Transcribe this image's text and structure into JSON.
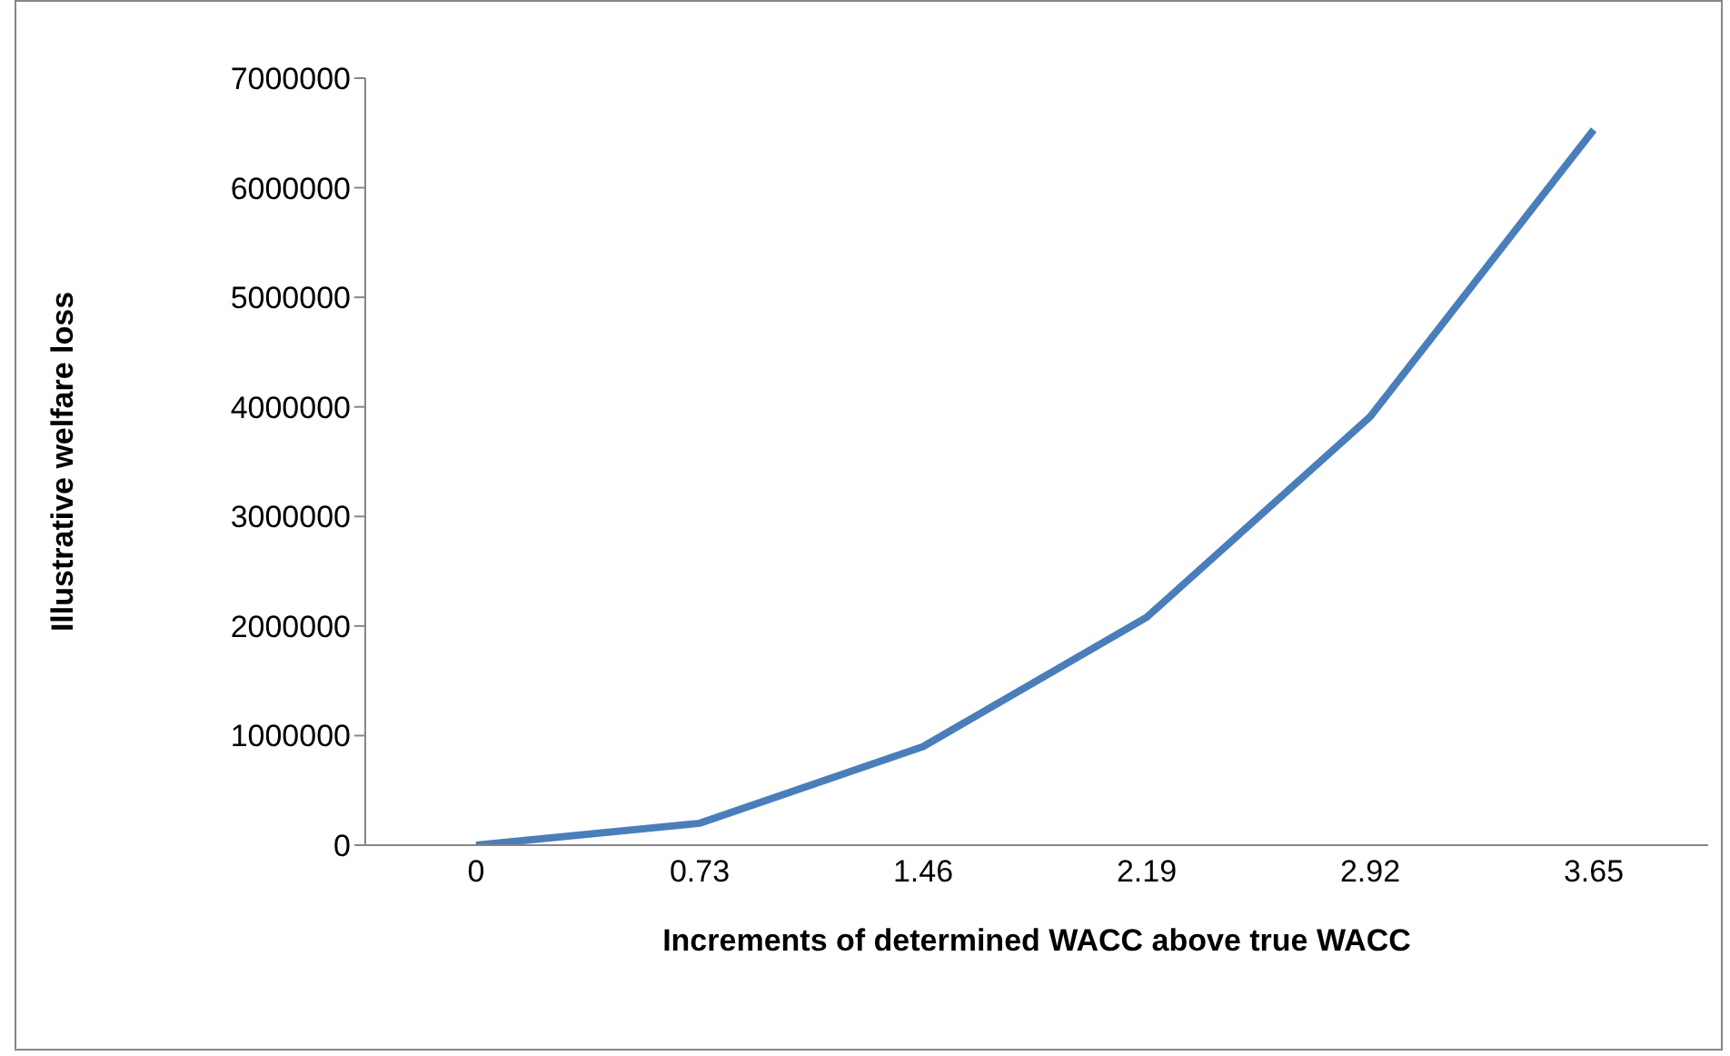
{
  "chart_data": {
    "type": "line",
    "xlabel": "Increments of determined WACC above true WACC",
    "ylabel": "Illustrative welfare loss",
    "categories": [
      "0",
      "0.73",
      "1.46",
      "2.19",
      "2.92",
      "3.65"
    ],
    "series": [
      {
        "color": "#4a7ebb",
        "values": [
          0,
          200000,
          900000,
          2080000,
          3910000,
          6530000
        ]
      }
    ],
    "ylim": [
      0,
      7000000
    ],
    "yticks": [
      0,
      1000000,
      2000000,
      3000000,
      4000000,
      5000000,
      6000000,
      7000000
    ],
    "grid": false,
    "marker": "none",
    "line_style": "solid"
  }
}
